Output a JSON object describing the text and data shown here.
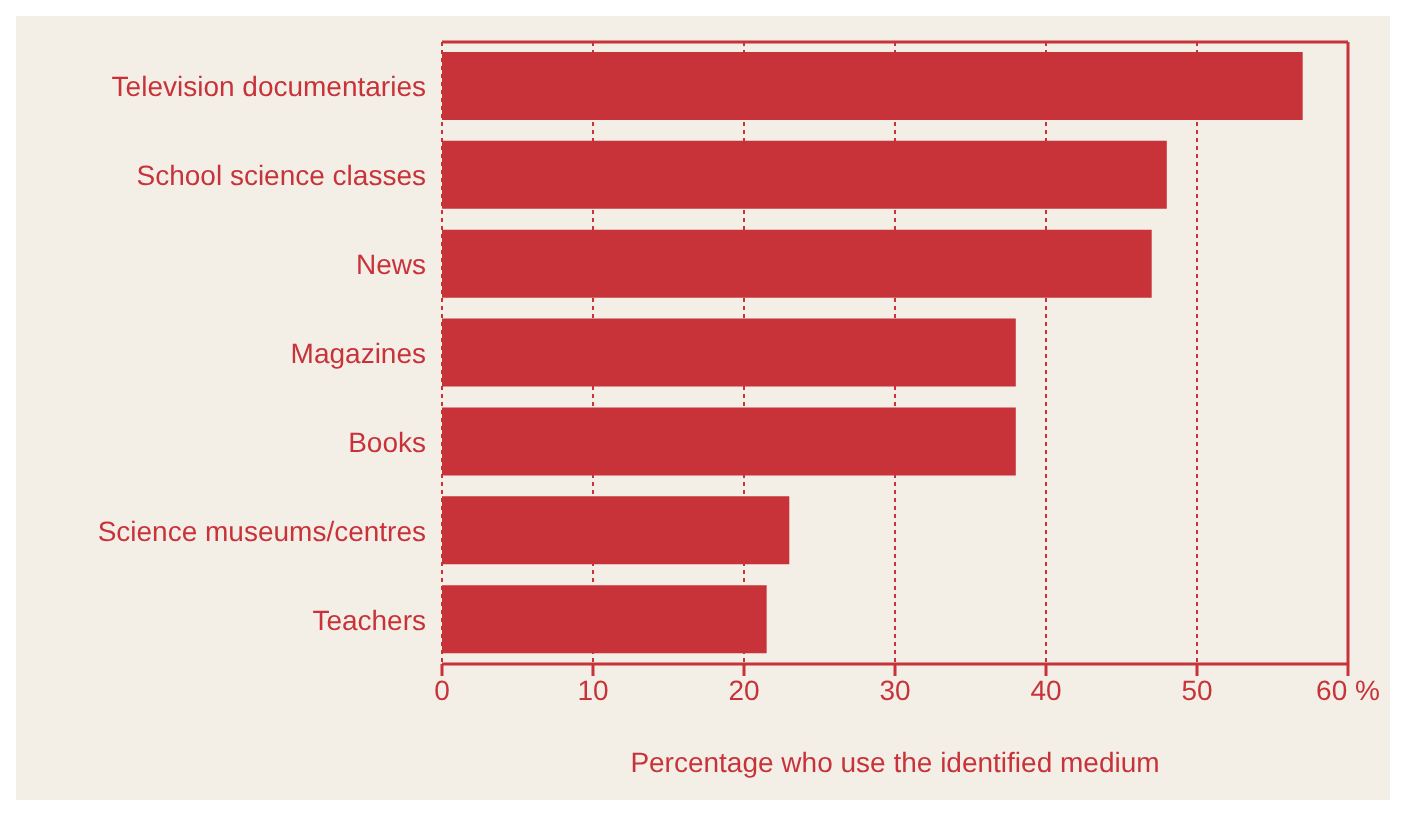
{
  "chart_data": {
    "type": "bar",
    "orientation": "horizontal",
    "xlabel": "Percentage who use the identified medium",
    "categories": [
      "Television documentaries",
      "School science classes",
      "News",
      "Magazines",
      "Books",
      "Science museums/centres",
      "Teachers"
    ],
    "values": [
      57,
      48,
      47,
      38,
      38,
      23,
      21.5
    ],
    "color": "#c8333a",
    "xlim": [
      0,
      60
    ],
    "xticks": [
      0,
      10,
      20,
      30,
      40,
      50,
      {
        "value": 60,
        "label": "60 %"
      }
    ],
    "grid": "x"
  }
}
